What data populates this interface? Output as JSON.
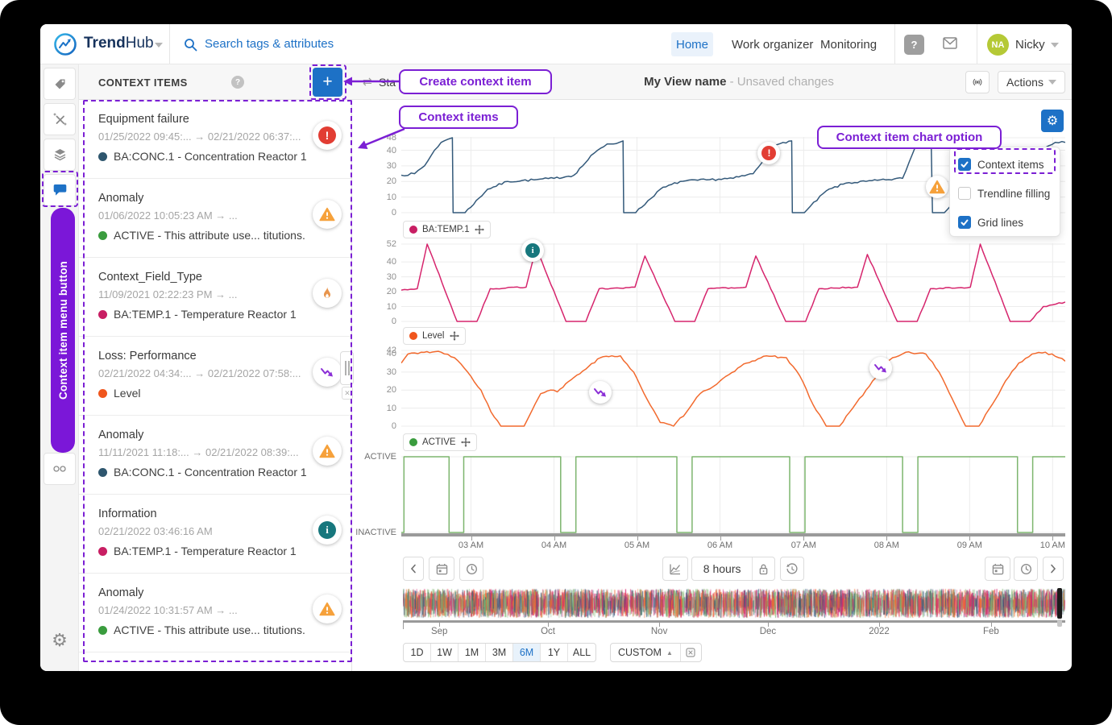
{
  "navbar": {
    "brand_bold": "Trend",
    "brand_light": "Hub",
    "search_placeholder": "Search tags & attributes",
    "nav_items": [
      {
        "label": "Home",
        "active": true
      },
      {
        "label": "Work organizer",
        "active": false
      },
      {
        "label": "Monitoring",
        "active": false
      }
    ],
    "user": {
      "initials": "NA",
      "name": "Nicky"
    }
  },
  "sidebar": {
    "icons": [
      "tag",
      "compare",
      "layers",
      "context-chat",
      "more",
      "settings"
    ]
  },
  "annotations": {
    "accent": "#7b1fd4",
    "menu_button_label": "Context item menu button",
    "create_callout": "Create context item",
    "items_callout": "Context items",
    "chart_option_callout": "Context item chart option"
  },
  "context_panel": {
    "title": "CONTEXT ITEMS",
    "items": [
      {
        "title": "Equipment failure",
        "dates": "01/25/2022 09:45:...  →  02/21/2022 06:37:...",
        "tag": "BA:CONC.1 - Concentration Reactor 1",
        "tag_color": "#2e566e",
        "icon": "error"
      },
      {
        "title": "Anomaly",
        "dates": "01/06/2022 10:05:23 AM  →  ...",
        "tag": "ACTIVE - This attribute use... titutions.",
        "tag_color": "#3a9c3e",
        "icon": "warning"
      },
      {
        "title": "Context_Field_Type",
        "dates": "11/09/2021 02:22:23 PM  →  ...",
        "tag": "BA:TEMP.1 - Temperature Reactor 1",
        "tag_color": "#c81e63",
        "icon": "flame"
      },
      {
        "title": "Loss: Performance",
        "dates": "02/21/2022 04:34:...  →  02/21/2022 07:58:...",
        "tag": "Level",
        "tag_color": "#f0561d",
        "icon": "trend"
      },
      {
        "title": "Anomaly",
        "dates": "11/11/2021 11:18:...  →  02/21/2022 08:39:...",
        "tag": "BA:CONC.1 - Concentration Reactor 1",
        "tag_color": "#2e566e",
        "icon": "warning"
      },
      {
        "title": "Information",
        "dates": "02/21/2022 03:46:16 AM",
        "tag": "BA:TEMP.1 - Temperature Reactor 1",
        "tag_color": "#c81e63",
        "icon": "info"
      },
      {
        "title": "Anomaly",
        "dates": "01/24/2022 10:31:57 AM  →  ...",
        "tag": "ACTIVE - This attribute use... titutions.",
        "tag_color": "#3a9c3e",
        "icon": "warning"
      }
    ]
  },
  "view_header": {
    "partial_label": "Sta",
    "title": "My View name",
    "status": "- Unsaved changes",
    "actions_label": "Actions"
  },
  "chart_options": {
    "items": [
      {
        "label": "Context items",
        "checked": true,
        "highlighted": true
      },
      {
        "label": "Trendline filling",
        "checked": false,
        "highlighted": false
      },
      {
        "label": "Grid lines",
        "checked": true,
        "highlighted": false
      }
    ]
  },
  "chips": [
    {
      "label": "BA:TEMP.1",
      "dot": "#c81e63"
    },
    {
      "label": "Level",
      "dot": "#f0561d"
    },
    {
      "label": "ACTIVE",
      "dot": "#3a9c3e"
    }
  ],
  "chart_meta": {
    "grid_color": "#ececec",
    "xticks": [
      {
        "label": "03 AM",
        "x": 0.105
      },
      {
        "label": "04 AM",
        "x": 0.23
      },
      {
        "label": "05 AM",
        "x": 0.355
      },
      {
        "label": "06 AM",
        "x": 0.48
      },
      {
        "label": "07 AM",
        "x": 0.606
      },
      {
        "label": "08 AM",
        "x": 0.731
      },
      {
        "label": "09 AM",
        "x": 0.856
      },
      {
        "label": "10 AM",
        "x": 0.981
      }
    ]
  },
  "chart_data": [
    {
      "type": "line",
      "name": "BA:CONC.1",
      "color": "#33597a",
      "ymax": 48,
      "yticks": [
        48,
        40,
        30,
        20,
        10,
        0
      ],
      "noise": 0.7,
      "points": [
        [
          0,
          24
        ],
        [
          0.02,
          25
        ],
        [
          0.035,
          30
        ],
        [
          0.05,
          40
        ],
        [
          0.06,
          45
        ],
        [
          0.07,
          47
        ],
        [
          0.077,
          48
        ],
        [
          0.078,
          0
        ],
        [
          0.096,
          0
        ],
        [
          0.13,
          15
        ],
        [
          0.16,
          20
        ],
        [
          0.2,
          21
        ],
        [
          0.23,
          22
        ],
        [
          0.26,
          24
        ],
        [
          0.29,
          38
        ],
        [
          0.31,
          44
        ],
        [
          0.328,
          45
        ],
        [
          0.334,
          46
        ],
        [
          0.335,
          0
        ],
        [
          0.353,
          0
        ],
        [
          0.39,
          15
        ],
        [
          0.42,
          20
        ],
        [
          0.46,
          21
        ],
        [
          0.5,
          22
        ],
        [
          0.53,
          25
        ],
        [
          0.56,
          42
        ],
        [
          0.575,
          45
        ],
        [
          0.588,
          46
        ],
        [
          0.589,
          0
        ],
        [
          0.607,
          0
        ],
        [
          0.64,
          14
        ],
        [
          0.67,
          19
        ],
        [
          0.7,
          20
        ],
        [
          0.73,
          21
        ],
        [
          0.755,
          22
        ],
        [
          0.775,
          43
        ],
        [
          0.788,
          45
        ],
        [
          0.798,
          46
        ],
        [
          0.8,
          0
        ],
        [
          0.818,
          0
        ],
        [
          0.85,
          15
        ],
        [
          0.88,
          20
        ],
        [
          0.91,
          21
        ],
        [
          0.935,
          24
        ],
        [
          0.965,
          40
        ],
        [
          0.985,
          45
        ],
        [
          1,
          45
        ]
      ],
      "markers": [
        {
          "kind": "error",
          "x": 0.554,
          "y": 0.21
        },
        {
          "kind": "warning",
          "x": 0.807,
          "y": 0.65
        }
      ]
    },
    {
      "type": "line",
      "name": "BA:TEMP.1",
      "color": "#d6256d",
      "ymax": 52,
      "yticks": [
        52,
        40,
        30,
        20,
        10,
        0
      ],
      "noise": 0.45,
      "points": [
        [
          0,
          21
        ],
        [
          0.024,
          22
        ],
        [
          0.039,
          52
        ],
        [
          0.084,
          0
        ],
        [
          0.114,
          0
        ],
        [
          0.134,
          22
        ],
        [
          0.188,
          23
        ],
        [
          0.203,
          50
        ],
        [
          0.248,
          0
        ],
        [
          0.278,
          0
        ],
        [
          0.298,
          22
        ],
        [
          0.352,
          23
        ],
        [
          0.367,
          44
        ],
        [
          0.412,
          0
        ],
        [
          0.442,
          0
        ],
        [
          0.462,
          22
        ],
        [
          0.519,
          23
        ],
        [
          0.534,
          44
        ],
        [
          0.579,
          0
        ],
        [
          0.609,
          0
        ],
        [
          0.629,
          22
        ],
        [
          0.687,
          23
        ],
        [
          0.702,
          45
        ],
        [
          0.747,
          0
        ],
        [
          0.777,
          0
        ],
        [
          0.797,
          22
        ],
        [
          0.857,
          23
        ],
        [
          0.872,
          52
        ],
        [
          0.917,
          0
        ],
        [
          0.947,
          0
        ],
        [
          0.967,
          10
        ],
        [
          1,
          13
        ]
      ],
      "markers": [
        {
          "kind": "info",
          "x": 0.198,
          "y": 0.09
        }
      ]
    },
    {
      "type": "line",
      "name": "Level",
      "color": "#f26a2e",
      "ymax": 42,
      "yticks": [
        42,
        40,
        30,
        20,
        10,
        0
      ],
      "noise": 0.55,
      "points": [
        [
          0,
          35
        ],
        [
          0.01,
          40
        ],
        [
          0.03,
          41
        ],
        [
          0.06,
          41
        ],
        [
          0.08,
          38
        ],
        [
          0.1,
          30
        ],
        [
          0.12,
          20
        ],
        [
          0.135,
          8
        ],
        [
          0.15,
          0
        ],
        [
          0.185,
          0
        ],
        [
          0.21,
          18
        ],
        [
          0.225,
          20
        ],
        [
          0.235,
          19
        ],
        [
          0.26,
          27
        ],
        [
          0.3,
          38
        ],
        [
          0.33,
          39
        ],
        [
          0.35,
          30
        ],
        [
          0.37,
          15
        ],
        [
          0.39,
          2
        ],
        [
          0.41,
          0
        ],
        [
          0.43,
          8
        ],
        [
          0.45,
          18
        ],
        [
          0.46,
          20
        ],
        [
          0.48,
          25
        ],
        [
          0.52,
          35
        ],
        [
          0.55,
          39
        ],
        [
          0.58,
          38
        ],
        [
          0.6,
          28
        ],
        [
          0.62,
          12
        ],
        [
          0.64,
          0
        ],
        [
          0.66,
          0
        ],
        [
          0.68,
          10
        ],
        [
          0.7,
          20
        ],
        [
          0.72,
          30
        ],
        [
          0.74,
          38
        ],
        [
          0.76,
          41
        ],
        [
          0.79,
          40
        ],
        [
          0.81,
          30
        ],
        [
          0.83,
          15
        ],
        [
          0.85,
          0
        ],
        [
          0.87,
          0
        ],
        [
          0.89,
          12
        ],
        [
          0.91,
          25
        ],
        [
          0.93,
          35
        ],
        [
          0.95,
          40
        ],
        [
          0.97,
          41
        ],
        [
          0.99,
          38
        ],
        [
          1,
          36
        ]
      ],
      "markers": [
        {
          "kind": "trend",
          "x": 0.3,
          "y": 0.55
        },
        {
          "kind": "trend",
          "x": 0.722,
          "y": 0.24
        }
      ]
    },
    {
      "type": "digital",
      "name": "ACTIVE",
      "color": "#7db56e",
      "ytick_labels": [
        "ACTIVE",
        "INACTIVE"
      ],
      "points": [
        [
          0,
          0
        ],
        [
          0.004,
          0
        ],
        [
          0.004,
          1
        ],
        [
          0.072,
          1
        ],
        [
          0.072,
          0
        ],
        [
          0.094,
          0
        ],
        [
          0.094,
          1
        ],
        [
          0.24,
          1
        ],
        [
          0.24,
          0
        ],
        [
          0.263,
          0
        ],
        [
          0.263,
          1
        ],
        [
          0.415,
          1
        ],
        [
          0.415,
          0
        ],
        [
          0.438,
          0
        ],
        [
          0.438,
          1
        ],
        [
          0.585,
          1
        ],
        [
          0.585,
          0
        ],
        [
          0.608,
          0
        ],
        [
          0.608,
          1
        ],
        [
          0.755,
          1
        ],
        [
          0.755,
          0
        ],
        [
          0.778,
          0
        ],
        [
          0.778,
          1
        ],
        [
          0.928,
          1
        ],
        [
          0.928,
          0
        ],
        [
          0.951,
          0
        ],
        [
          0.951,
          1
        ],
        [
          1,
          1
        ]
      ],
      "markers": []
    }
  ],
  "toolbar": {
    "duration_label": "8 hours"
  },
  "timeline": {
    "colors": [
      "#7db56e",
      "#f26a2e",
      "#d6256d",
      "#33597a"
    ],
    "months": [
      {
        "label": "Sep",
        "x": 0.055
      },
      {
        "label": "Oct",
        "x": 0.219
      },
      {
        "label": "Nov",
        "x": 0.387
      },
      {
        "label": "Dec",
        "x": 0.551
      },
      {
        "label": "2022",
        "x": 0.719
      },
      {
        "label": "Feb",
        "x": 0.888
      }
    ]
  },
  "range_buttons": {
    "options": [
      "1D",
      "1W",
      "1M",
      "3M",
      "6M",
      "1Y",
      "ALL"
    ],
    "active": "6M",
    "custom_label": "CUSTOM"
  }
}
